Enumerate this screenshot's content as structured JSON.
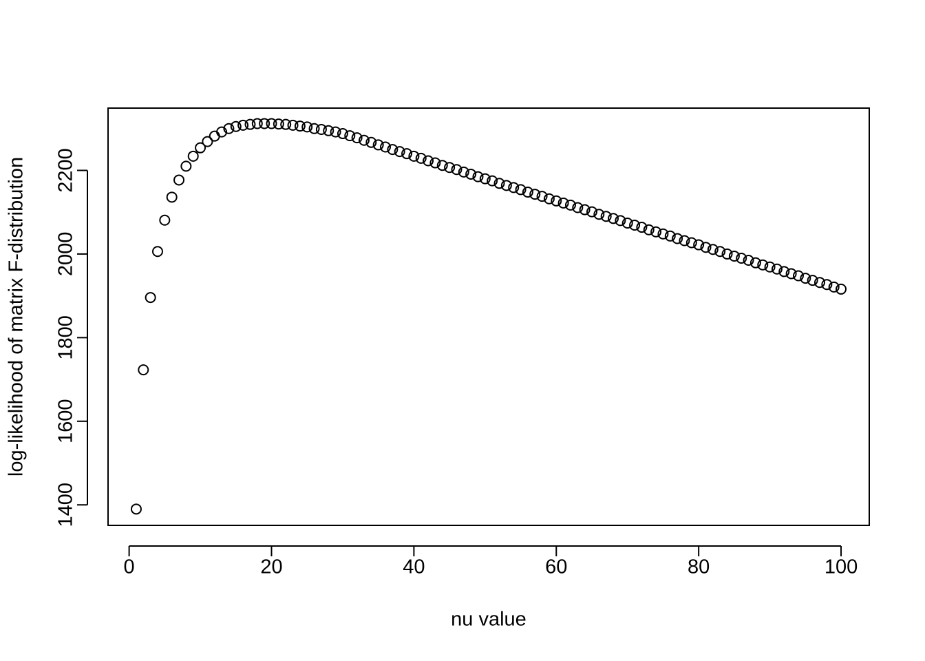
{
  "chart_data": {
    "type": "scatter",
    "x_label": "nu value",
    "y_label": "log-likelihood of matrix F-distribution",
    "x": [
      1,
      2,
      3,
      4,
      5,
      6,
      7,
      8,
      9,
      10,
      11,
      12,
      13,
      14,
      15,
      16,
      17,
      18,
      19,
      20,
      21,
      22,
      23,
      24,
      25,
      26,
      27,
      28,
      29,
      30,
      31,
      32,
      33,
      34,
      35,
      36,
      37,
      38,
      39,
      40,
      41,
      42,
      43,
      44,
      45,
      46,
      47,
      48,
      49,
      50,
      51,
      52,
      53,
      54,
      55,
      56,
      57,
      58,
      59,
      60,
      61,
      62,
      63,
      64,
      65,
      66,
      67,
      68,
      69,
      70,
      71,
      72,
      73,
      74,
      75,
      76,
      77,
      78,
      79,
      80,
      81,
      82,
      83,
      84,
      85,
      86,
      87,
      88,
      89,
      90,
      91,
      92,
      93,
      94,
      95,
      96,
      97,
      98,
      99,
      100
    ],
    "values": [
      1390,
      1723,
      1896,
      2006,
      2081,
      2136,
      2177,
      2210,
      2234,
      2254,
      2269,
      2282,
      2292,
      2300,
      2305,
      2308,
      2310,
      2312,
      2312,
      2312,
      2311,
      2310,
      2308,
      2306,
      2304,
      2300,
      2298,
      2295,
      2292,
      2288,
      2283,
      2278,
      2272,
      2267,
      2261,
      2256,
      2250,
      2245,
      2240,
      2234,
      2229,
      2223,
      2218,
      2212,
      2207,
      2202,
      2196,
      2191,
      2185,
      2180,
      2175,
      2169,
      2164,
      2159,
      2154,
      2148,
      2143,
      2138,
      2132,
      2127,
      2122,
      2117,
      2111,
      2106,
      2101,
      2095,
      2090,
      2085,
      2080,
      2074,
      2069,
      2064,
      2058,
      2053,
      2048,
      2043,
      2037,
      2032,
      2027,
      2022,
      2016,
      2011,
      2006,
      2000,
      1995,
      1990,
      1985,
      1979,
      1974,
      1969,
      1964,
      1958,
      1953,
      1948,
      1942,
      1937,
      1932,
      1927,
      1921,
      1916
    ],
    "color": "#000000",
    "xlim": [
      -2.96,
      103.96
    ],
    "ylim": [
      1351,
      2349
    ],
    "xticks": [
      0,
      20,
      40,
      60,
      80,
      100
    ],
    "yticks": [
      1400,
      1600,
      1800,
      2000,
      2200
    ],
    "grid": false
  }
}
